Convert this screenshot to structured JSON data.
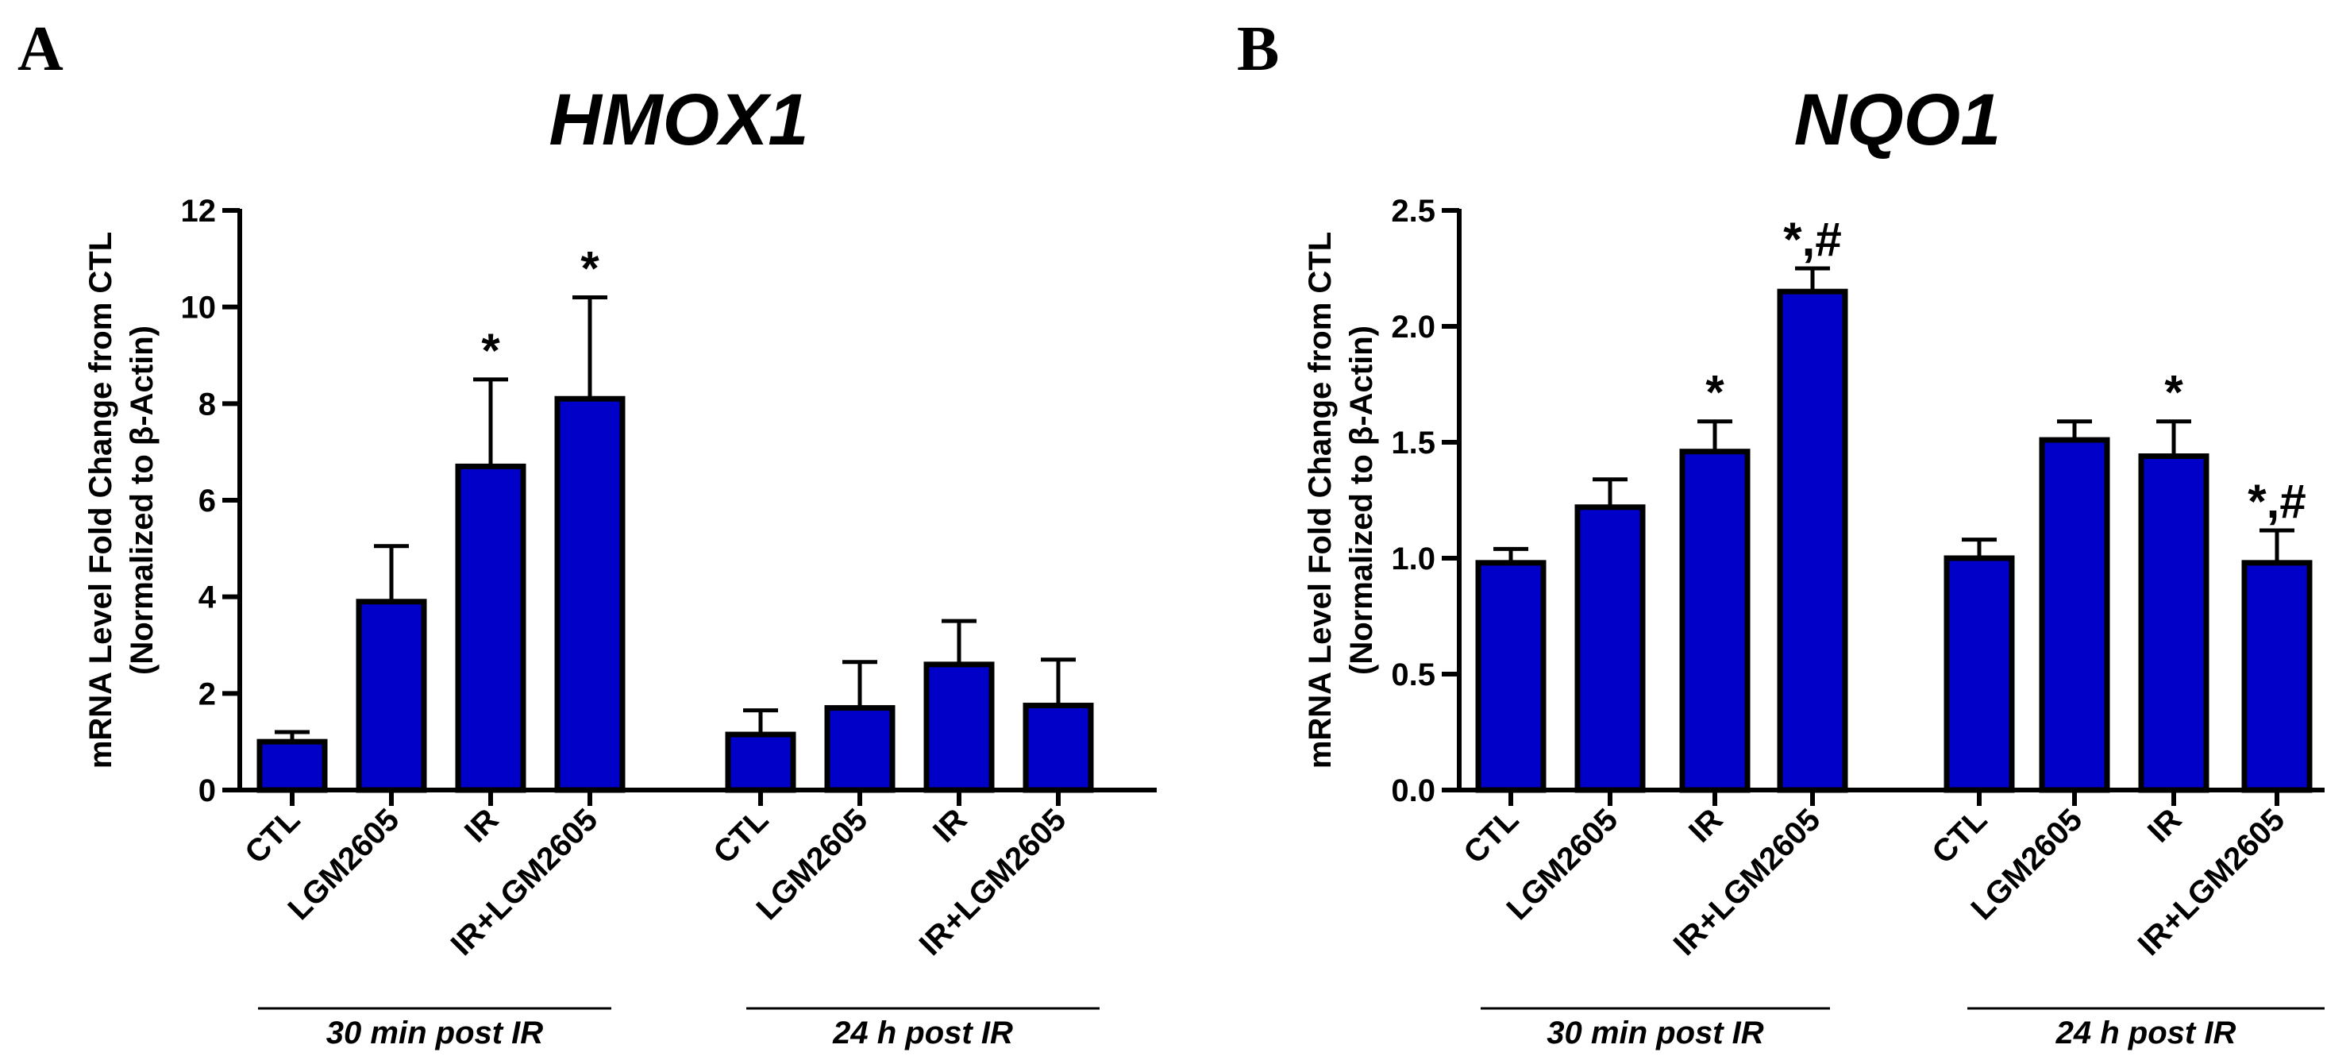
{
  "chart_data": [
    {
      "type": "bar",
      "panel": "A",
      "title": "HMOX1",
      "ylabel_line1": "mRNA Level Fold Change from CTL",
      "ylabel_line2": "(Normalized to β-Actin)",
      "ylim": [
        0,
        12
      ],
      "yticks": [
        0,
        2,
        4,
        6,
        8,
        10,
        12
      ],
      "ytick_labels": [
        "0",
        "2",
        "4",
        "6",
        "8",
        "10",
        "12"
      ],
      "bar_color": "#0000c8",
      "groups": [
        {
          "label": "30 min post IR",
          "categories": [
            "CTL",
            "LGM2605",
            "IR",
            "IR+LGM2605"
          ],
          "values": [
            1.0,
            3.9,
            6.7,
            8.1
          ],
          "errors": [
            0.2,
            1.15,
            1.8,
            2.1
          ],
          "annotations": [
            "",
            "",
            "*",
            "*"
          ]
        },
        {
          "label": "24 h post IR",
          "categories": [
            "CTL",
            "LGM2605",
            "IR",
            "IR+LGM2605"
          ],
          "values": [
            1.15,
            1.7,
            2.6,
            1.75
          ],
          "errors": [
            0.5,
            0.95,
            0.9,
            0.95
          ],
          "annotations": [
            "",
            "",
            "",
            ""
          ]
        }
      ]
    },
    {
      "type": "bar",
      "panel": "B",
      "title": "NQO1",
      "ylabel_line1": "mRNA Level Fold Change from CTL",
      "ylabel_line2": "(Normalized to β-Actin)",
      "ylim": [
        0,
        2.5
      ],
      "yticks": [
        0,
        0.5,
        1.0,
        1.5,
        2.0,
        2.5
      ],
      "ytick_labels": [
        "0.0",
        "0.5",
        "1.0",
        "1.5",
        "2.0",
        "2.5"
      ],
      "bar_color": "#0000c8",
      "groups": [
        {
          "label": "30 min post IR",
          "categories": [
            "CTL",
            "LGM2605",
            "IR",
            "IR+LGM2605"
          ],
          "values": [
            0.98,
            1.22,
            1.46,
            2.15
          ],
          "errors": [
            0.06,
            0.12,
            0.13,
            0.1
          ],
          "annotations": [
            "",
            "",
            "*",
            "*,#"
          ]
        },
        {
          "label": "24 h post IR",
          "categories": [
            "CTL",
            "LGM2605",
            "IR",
            "IR+LGM2605"
          ],
          "values": [
            1.0,
            1.51,
            1.44,
            0.98
          ],
          "errors": [
            0.08,
            0.08,
            0.15,
            0.14
          ],
          "annotations": [
            "",
            "",
            "*",
            "*,#"
          ]
        }
      ]
    }
  ]
}
